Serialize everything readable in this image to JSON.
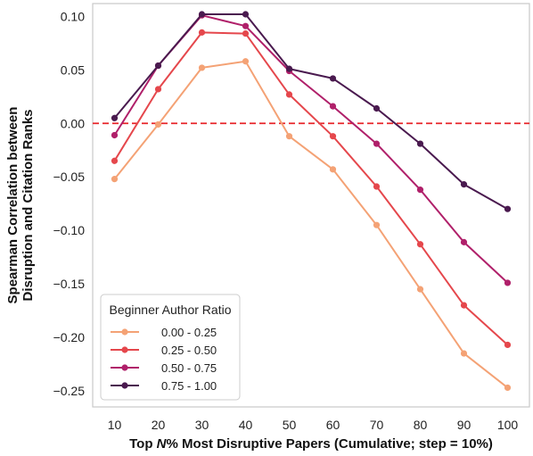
{
  "chart_data": {
    "type": "line",
    "xlabel_prefix": "Top ",
    "xlabel_italic": "N",
    "xlabel_suffix": "% Most Disruptive Papers (Cumulative; step = 10%)",
    "ylabel_line1": "Spearman Correlation between",
    "ylabel_line2": "Disruption and Citation Ranks",
    "x": [
      10,
      20,
      30,
      40,
      50,
      60,
      70,
      80,
      90,
      100
    ],
    "xlim": [
      5,
      105
    ],
    "ylim": [
      -0.265,
      0.112
    ],
    "yticks": [
      0.1,
      0.05,
      0.0,
      -0.05,
      -0.1,
      -0.15,
      -0.2,
      -0.25
    ],
    "ytick_labels": [
      "0.10",
      "0.05",
      "0.00",
      "−0.05",
      "−0.10",
      "−0.15",
      "−0.20",
      "−0.25"
    ],
    "xtick_labels": [
      "10",
      "20",
      "30",
      "40",
      "50",
      "60",
      "70",
      "80",
      "90",
      "100"
    ],
    "reference_line": {
      "y": 0.0,
      "color": "#e8262b",
      "style": "dashed"
    },
    "grid": false,
    "legend": {
      "title": "Beginner Author Ratio",
      "placement": "bottom-left"
    },
    "series": [
      {
        "name": "0.00 - 0.25",
        "color": "#f4a275",
        "values": [
          -0.052,
          -0.001,
          0.052,
          0.058,
          -0.012,
          -0.043,
          -0.095,
          -0.155,
          -0.215,
          -0.247
        ]
      },
      {
        "name": "0.25 - 0.50",
        "color": "#e5474c",
        "values": [
          -0.035,
          0.032,
          0.085,
          0.084,
          0.027,
          -0.012,
          -0.059,
          -0.113,
          -0.17,
          -0.207
        ]
      },
      {
        "name": "0.50 - 0.75",
        "color": "#b0206a",
        "values": [
          -0.011,
          0.054,
          0.101,
          0.091,
          0.049,
          0.016,
          -0.019,
          -0.062,
          -0.111,
          -0.149
        ]
      },
      {
        "name": "0.75 - 1.00",
        "color": "#4a1a4f",
        "values": [
          0.005,
          0.054,
          0.102,
          0.102,
          0.051,
          0.042,
          0.014,
          -0.019,
          -0.057,
          -0.08
        ]
      }
    ]
  }
}
